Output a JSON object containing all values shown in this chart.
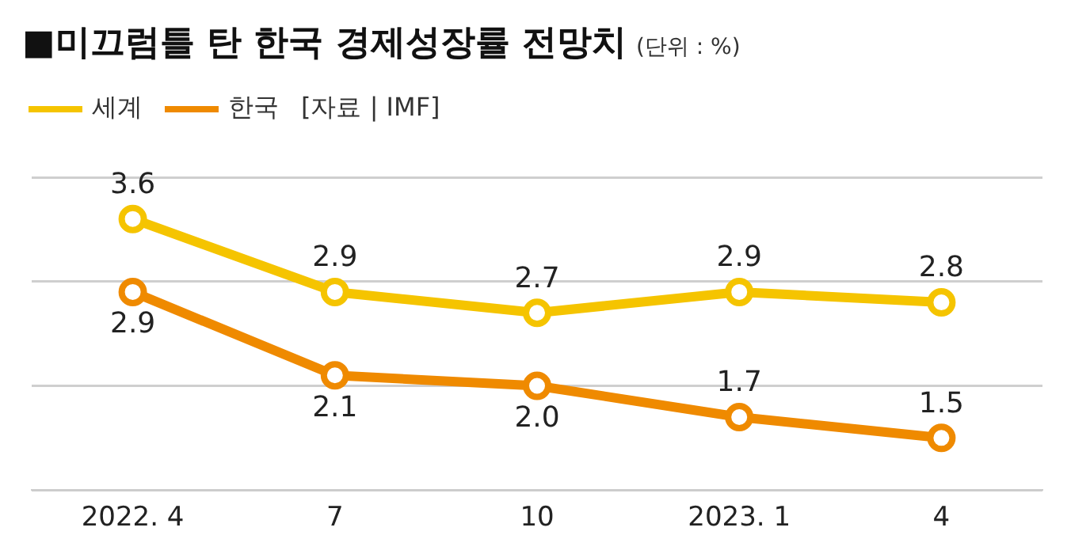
{
  "chart_data": {
    "type": "line",
    "title": "■미끄럼틀 탄 한국 경제성장률 전망치",
    "subtitle": "(단위 : %)",
    "annotations": [
      "[자료 | IMF]"
    ],
    "categories": [
      "2022. 4",
      "7",
      "10",
      "2023. 1",
      "4"
    ],
    "series": [
      {
        "name": "세계",
        "color": "#f5c400",
        "values": [
          3.6,
          2.9,
          2.7,
          2.9,
          2.8
        ],
        "value_labels": [
          "3.6",
          "2.9",
          "2.7",
          "2.9",
          "2.8"
        ]
      },
      {
        "name": "한국",
        "color": "#ef8a00",
        "values": [
          2.9,
          2.1,
          2.0,
          1.7,
          1.5
        ],
        "value_labels": [
          "2.9",
          "2.1",
          "2.0",
          "1.7",
          "1.5"
        ]
      }
    ],
    "ylim": [
      1,
      4
    ],
    "yticks": [
      {
        "value": 1,
        "label": null
      },
      {
        "value": 2,
        "label": null
      },
      {
        "value": 3,
        "label": null
      },
      {
        "value": 4,
        "label": null
      }
    ],
    "tick_labels": "x",
    "grid": "y",
    "legend": "top left",
    "marker": "circle",
    "line_style": "solid"
  }
}
